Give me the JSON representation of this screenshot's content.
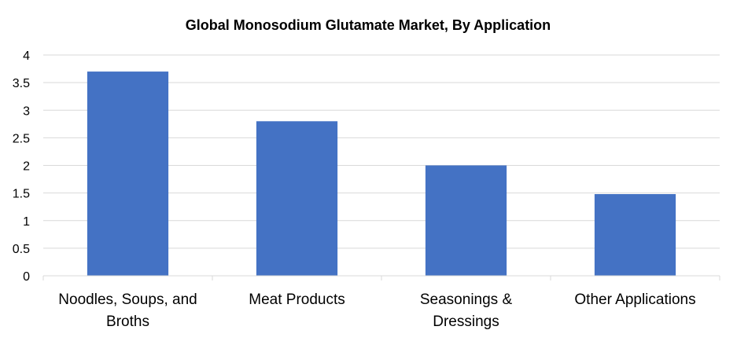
{
  "chart_data": {
    "type": "bar",
    "title": "Global Monosodium Glutamate Market, By Application",
    "categories": [
      [
        "Noodles, Soups, and",
        "Broths"
      ],
      [
        "Meat Products"
      ],
      [
        "Seasonings &",
        "Dressings"
      ],
      [
        "Other Applications"
      ]
    ],
    "values": [
      3.7,
      2.8,
      2.0,
      1.48
    ],
    "yticks": [
      "0",
      "0.5",
      "1",
      "1.5",
      "2",
      "2.5",
      "3",
      "3.5",
      "4"
    ],
    "ylim": [
      0,
      4
    ],
    "xlabel": "",
    "ylabel": "",
    "grid": true,
    "legend": "none",
    "colors": {
      "bar": "#4472C4",
      "grid": "#D9D9D9",
      "axis": "#D9D9D9",
      "text": "#000000"
    }
  }
}
